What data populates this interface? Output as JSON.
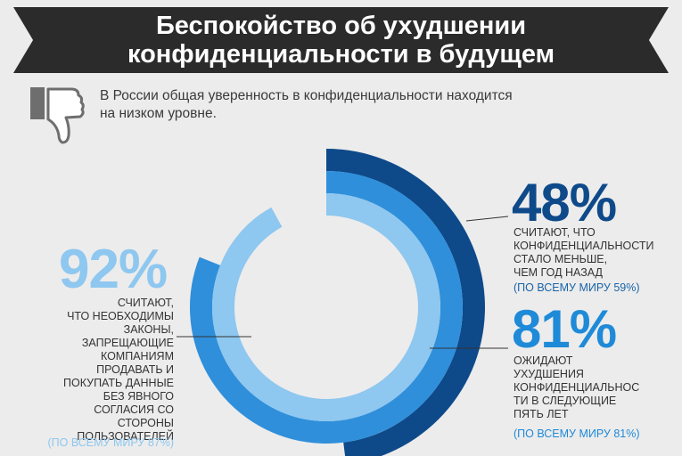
{
  "title_line1": "Беспокойство об ухудшении",
  "title_line2": "конфиденциальности в будущем",
  "intro_line1": "В России общая уверенность в конфиденциальности находится",
  "intro_line2": "на низком уровне.",
  "colors": {
    "dark_blue": "#0e4a8a",
    "mid_blue": "#2f8fdb",
    "light_blue": "#8ec7ef",
    "banner": "#2b2b2b"
  },
  "icons": [
    "thumbs-down-icon"
  ],
  "chart_data": {
    "type": "radial-bar",
    "title": "Беспокойство об ухудшении конфиденциальности в будущем",
    "series": [
      {
        "value": 48,
        "value_label": "48%",
        "unit": "%",
        "color": "#0e4a8a",
        "ring": "outer",
        "description_lines": [
          "СЧИТАЮТ, ЧТО",
          "КОНФИДЕНЦИАЛЬНОСТИ",
          "СТАЛО МЕНЬШЕ,",
          "ЧЕМ ГОД НАЗАД"
        ],
        "worldwide_label": "(ПО ВСЕМУ МИРУ 59%)",
        "worldwide_value": 59
      },
      {
        "value": 81,
        "value_label": "81%",
        "unit": "%",
        "color": "#2f8fdb",
        "ring": "middle",
        "description_lines": [
          "ОЖИДАЮТ",
          "УХУДШЕНИЯ",
          "КОНФИДЕНЦИАЛЬНОС",
          "ТИ В СЛЕДУЮЩИЕ",
          "ПЯТЬ ЛЕТ"
        ],
        "worldwide_label": "(ПО ВСЕМУ МИРУ 81%)",
        "worldwide_value": 81
      },
      {
        "value": 92,
        "value_label": "92%",
        "unit": "%",
        "color": "#8ec7ef",
        "ring": "inner",
        "description_lines": [
          "СЧИТАЮТ,",
          "ЧТО НЕОБХОДИМЫ",
          "ЗАКОНЫ,",
          "ЗАПРЕЩАЮЩИЕ",
          "КОМПАНИЯМ",
          "ПРОДАВАТЬ И",
          "ПОКУПАТЬ ДАННЫЕ",
          "БЕЗ ЯВНОГО",
          "СОГЛАСИЯ СО",
          "СТОРОНЫ",
          "ПОЛЬЗОВАТЕЛЕЙ"
        ],
        "worldwide_label": "(ПО ВСЕМУ МИРУ 87%)",
        "worldwide_value": 87
      }
    ]
  }
}
